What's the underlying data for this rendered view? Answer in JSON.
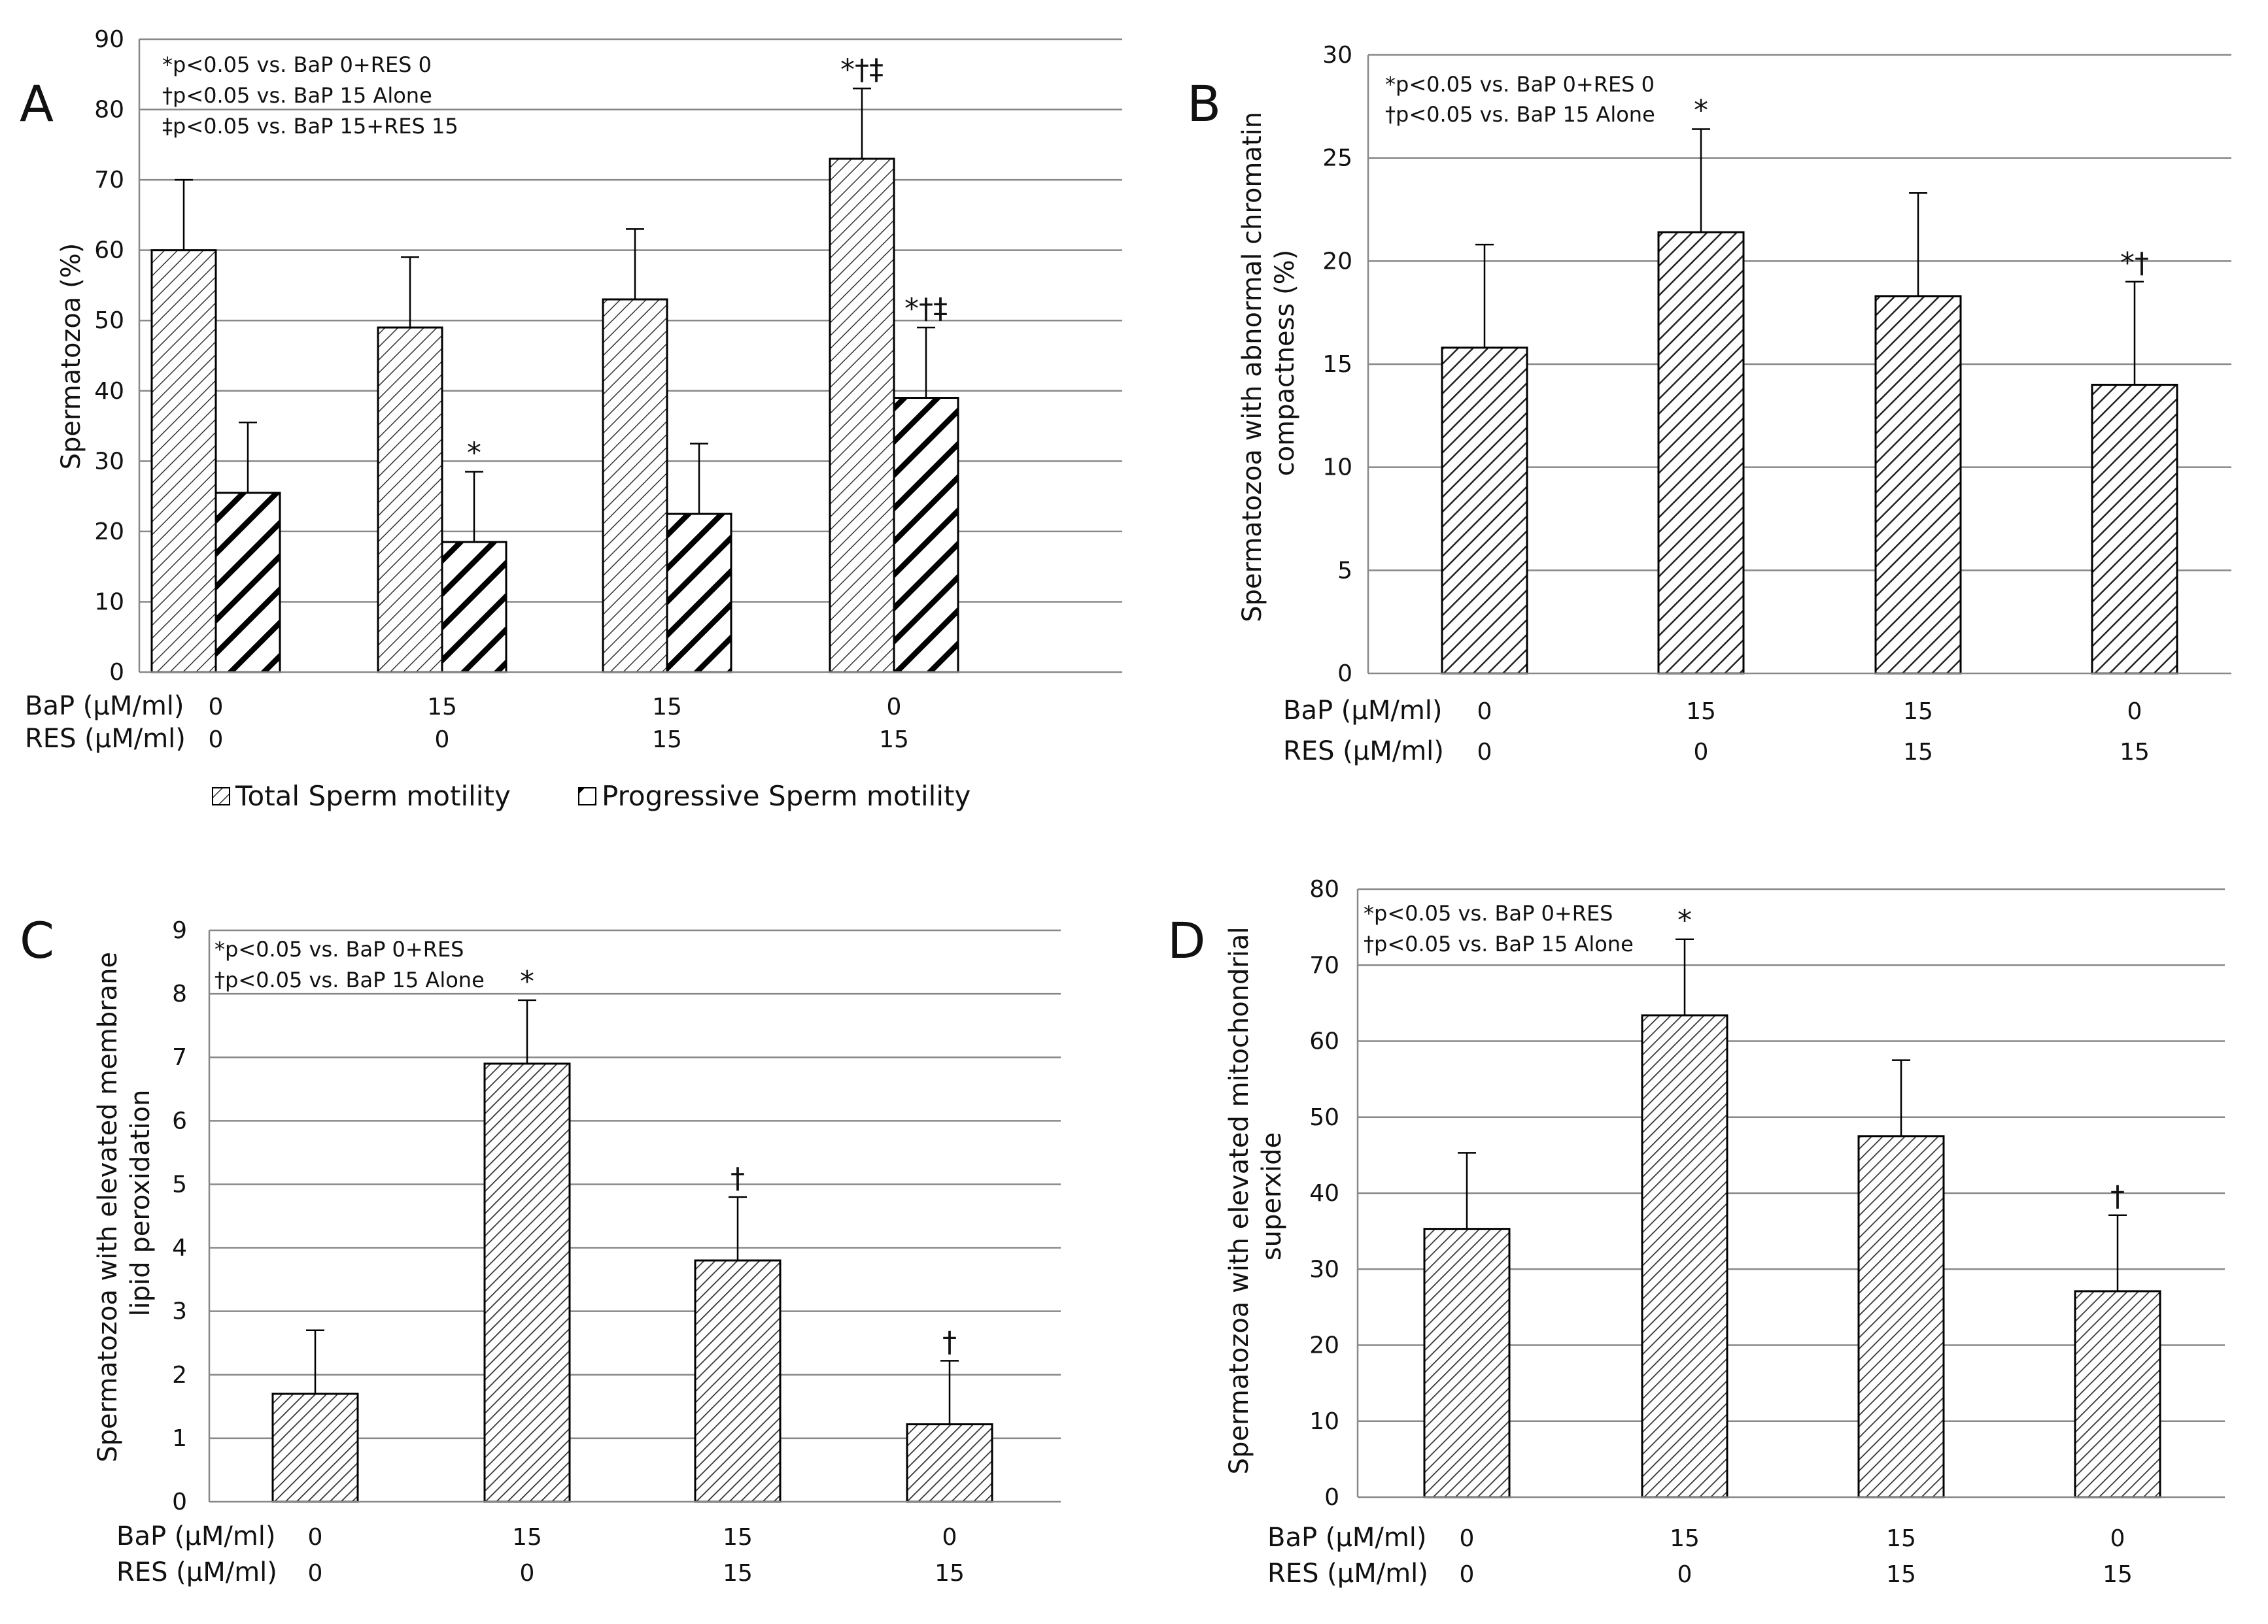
{
  "chart_data": [
    {
      "panel": "A",
      "type": "bar",
      "ylabel": "Spermatozoa (%)",
      "ylim": [
        0,
        90
      ],
      "yticks": [
        0,
        10,
        20,
        30,
        40,
        50,
        60,
        70,
        80,
        90
      ],
      "grid": true,
      "row_labels": [
        "BaP (μM/ml)",
        "RES (μM/ml)"
      ],
      "bap": [
        "0",
        "15",
        "15",
        "0"
      ],
      "res": [
        "0",
        "0",
        "15",
        "15"
      ],
      "annotations": [
        "*p<0.05 vs. BaP 0+RES 0",
        "†p<0.05 vs. BaP 15 Alone",
        "‡p<0.05 vs. BaP 15+RES 15"
      ],
      "legend_position": "bottom",
      "series": [
        {
          "name": "Total Sperm motility",
          "values": [
            60,
            49,
            53,
            73
          ],
          "errors": [
            10,
            10,
            10,
            10
          ],
          "marks": [
            "",
            "",
            "",
            "*†‡"
          ],
          "pattern": "light"
        },
        {
          "name": "Progressive Sperm motility",
          "values": [
            25.5,
            18.5,
            22.5,
            39
          ],
          "errors": [
            10,
            10,
            10,
            10
          ],
          "marks": [
            "",
            "*",
            "",
            "*†‡"
          ],
          "pattern": "bold"
        }
      ]
    },
    {
      "panel": "B",
      "type": "bar",
      "ylabel": "Spermatozoa with abnormal chromatin compactness (%)",
      "ylabel_lines": [
        "Spermatozoa with abnormal chromatin",
        "compactness (%)"
      ],
      "ylim": [
        0,
        30
      ],
      "yticks": [
        0,
        5,
        10,
        15,
        20,
        25,
        30
      ],
      "grid": true,
      "row_labels": [
        "BaP (μM/ml)",
        "RES (μM/ml)"
      ],
      "bap": [
        "0",
        "15",
        "15",
        "0"
      ],
      "res": [
        "0",
        "0",
        "15",
        "15"
      ],
      "annotations": [
        "*p<0.05 vs. BaP 0+RES 0",
        "†p<0.05 vs. BaP 15 Alone"
      ],
      "series": [
        {
          "name": "Abnormal chromatin compactness",
          "values": [
            15.8,
            21.4,
            18.3,
            14
          ],
          "errors": [
            5,
            5,
            5,
            5
          ],
          "marks": [
            "",
            "*",
            "",
            "*†"
          ],
          "pattern": "medium"
        }
      ]
    },
    {
      "panel": "C",
      "type": "bar",
      "ylabel": "Spermatozoa with elevated membrane lipid peroxidation",
      "ylabel_lines": [
        "Spermatozoa with elevated membrane",
        "lipid peroxidation"
      ],
      "ylim": [
        0,
        9
      ],
      "yticks": [
        0,
        1,
        2,
        3,
        4,
        5,
        6,
        7,
        8,
        9
      ],
      "grid": true,
      "row_labels": [
        "BaP (μM/ml)",
        "RES (μM/ml)"
      ],
      "bap": [
        "0",
        "15",
        "15",
        "0"
      ],
      "res": [
        "0",
        "0",
        "15",
        "15"
      ],
      "annotations": [
        "*p<0.05 vs. BaP 0+RES",
        "†p<0.05 vs. BaP 15 Alone"
      ],
      "series": [
        {
          "name": "Membrane lipid peroxidation",
          "values": [
            1.7,
            6.9,
            3.8,
            1.22
          ],
          "errors": [
            1,
            1,
            1,
            1
          ],
          "marks": [
            "",
            "*",
            "†",
            "†"
          ],
          "pattern": "fine"
        }
      ]
    },
    {
      "panel": "D",
      "type": "bar",
      "ylabel": "Spermatozoa with elevated mitochondrial superxide",
      "ylabel_lines": [
        "Spermatozoa with elevated mitochondrial",
        "superxide"
      ],
      "ylim": [
        0,
        80
      ],
      "yticks": [
        0,
        10,
        20,
        30,
        40,
        50,
        60,
        70,
        80
      ],
      "grid": true,
      "row_labels": [
        "BaP (μM/ml)",
        "RES (μM/ml)"
      ],
      "bap": [
        "0",
        "15",
        "15",
        "0"
      ],
      "res": [
        "0",
        "0",
        "15",
        "15"
      ],
      "annotations": [
        "*p<0.05 vs. BaP 0+RES",
        "†p<0.05 vs. BaP 15 Alone"
      ],
      "series": [
        {
          "name": "Mitochondrial superoxide",
          "values": [
            35.3,
            63.4,
            47.5,
            27.1
          ],
          "errors": [
            10,
            10,
            10,
            10
          ],
          "marks": [
            "",
            "*",
            "",
            "†"
          ],
          "pattern": "fine"
        }
      ]
    }
  ]
}
